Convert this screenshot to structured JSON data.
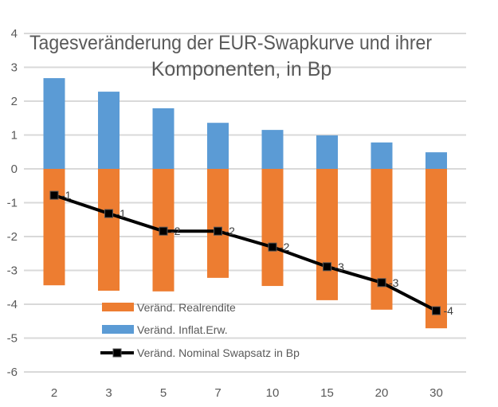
{
  "chart_data": {
    "type": "bar",
    "title_lines": [
      "Tagesveränderung der EUR-Swapkurve und ihrer",
      "Komponenten, in Bp"
    ],
    "categories": [
      "2",
      "3",
      "5",
      "7",
      "10",
      "15",
      "20",
      "30"
    ],
    "ylim": [
      -6,
      4
    ],
    "yticks": [
      "4",
      "3",
      "2",
      "1",
      "0",
      "-1",
      "-2",
      "-3",
      "-4",
      "-5",
      "-6"
    ],
    "ytick_values": [
      4,
      3,
      2,
      1,
      0,
      -1,
      -2,
      -3,
      -4,
      -5,
      -6
    ],
    "grid": true,
    "legend_placement": "bottom-left inside",
    "series": [
      {
        "name": "Veränd. Realrendite",
        "kind": "stacked-bar",
        "color": "#ED7D31",
        "values": [
          -3.44,
          -3.6,
          -3.62,
          -3.22,
          -3.46,
          -3.88,
          -4.16,
          -4.71
        ]
      },
      {
        "name": "Veränd. Inflat.Erw.",
        "kind": "stacked-bar",
        "color": "#5B9BD5",
        "values": [
          2.68,
          2.28,
          1.79,
          1.36,
          1.15,
          0.99,
          0.78,
          0.49
        ]
      },
      {
        "name": "Veränd. Nominal Swapsatz in Bp",
        "kind": "line",
        "color": "#000000",
        "values": [
          -0.78,
          -1.32,
          -1.84,
          -1.84,
          -2.31,
          -2.89,
          -3.36,
          -4.19
        ],
        "data_labels": [
          "-1",
          "-1",
          "-2",
          "-2",
          "-2",
          "-3",
          "-3",
          "-4"
        ]
      }
    ]
  }
}
